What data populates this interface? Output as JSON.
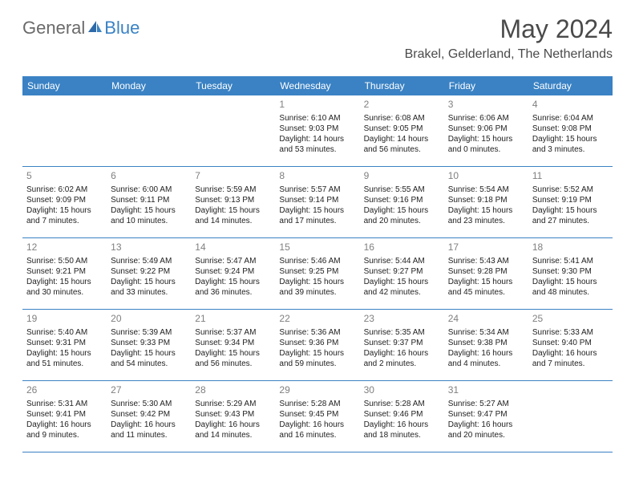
{
  "brand": {
    "part1": "General",
    "part2": "Blue"
  },
  "title": "May 2024",
  "location": "Brakel, Gelderland, The Netherlands",
  "colors": {
    "header_bg": "#3a82c4",
    "divider": "#3a82c4",
    "daynum": "#808080",
    "text": "#222222",
    "title_color": "#4a4a4a",
    "brand_gray": "#6a6a6a",
    "brand_blue": "#3a82c4"
  },
  "dayNames": [
    "Sunday",
    "Monday",
    "Tuesday",
    "Wednesday",
    "Thursday",
    "Friday",
    "Saturday"
  ],
  "weeks": [
    [
      {
        "n": "",
        "sr": "",
        "ss": "",
        "dl": ""
      },
      {
        "n": "",
        "sr": "",
        "ss": "",
        "dl": ""
      },
      {
        "n": "",
        "sr": "",
        "ss": "",
        "dl": ""
      },
      {
        "n": "1",
        "sr": "Sunrise: 6:10 AM",
        "ss": "Sunset: 9:03 PM",
        "dl": "Daylight: 14 hours and 53 minutes."
      },
      {
        "n": "2",
        "sr": "Sunrise: 6:08 AM",
        "ss": "Sunset: 9:05 PM",
        "dl": "Daylight: 14 hours and 56 minutes."
      },
      {
        "n": "3",
        "sr": "Sunrise: 6:06 AM",
        "ss": "Sunset: 9:06 PM",
        "dl": "Daylight: 15 hours and 0 minutes."
      },
      {
        "n": "4",
        "sr": "Sunrise: 6:04 AM",
        "ss": "Sunset: 9:08 PM",
        "dl": "Daylight: 15 hours and 3 minutes."
      }
    ],
    [
      {
        "n": "5",
        "sr": "Sunrise: 6:02 AM",
        "ss": "Sunset: 9:09 PM",
        "dl": "Daylight: 15 hours and 7 minutes."
      },
      {
        "n": "6",
        "sr": "Sunrise: 6:00 AM",
        "ss": "Sunset: 9:11 PM",
        "dl": "Daylight: 15 hours and 10 minutes."
      },
      {
        "n": "7",
        "sr": "Sunrise: 5:59 AM",
        "ss": "Sunset: 9:13 PM",
        "dl": "Daylight: 15 hours and 14 minutes."
      },
      {
        "n": "8",
        "sr": "Sunrise: 5:57 AM",
        "ss": "Sunset: 9:14 PM",
        "dl": "Daylight: 15 hours and 17 minutes."
      },
      {
        "n": "9",
        "sr": "Sunrise: 5:55 AM",
        "ss": "Sunset: 9:16 PM",
        "dl": "Daylight: 15 hours and 20 minutes."
      },
      {
        "n": "10",
        "sr": "Sunrise: 5:54 AM",
        "ss": "Sunset: 9:18 PM",
        "dl": "Daylight: 15 hours and 23 minutes."
      },
      {
        "n": "11",
        "sr": "Sunrise: 5:52 AM",
        "ss": "Sunset: 9:19 PM",
        "dl": "Daylight: 15 hours and 27 minutes."
      }
    ],
    [
      {
        "n": "12",
        "sr": "Sunrise: 5:50 AM",
        "ss": "Sunset: 9:21 PM",
        "dl": "Daylight: 15 hours and 30 minutes."
      },
      {
        "n": "13",
        "sr": "Sunrise: 5:49 AM",
        "ss": "Sunset: 9:22 PM",
        "dl": "Daylight: 15 hours and 33 minutes."
      },
      {
        "n": "14",
        "sr": "Sunrise: 5:47 AM",
        "ss": "Sunset: 9:24 PM",
        "dl": "Daylight: 15 hours and 36 minutes."
      },
      {
        "n": "15",
        "sr": "Sunrise: 5:46 AM",
        "ss": "Sunset: 9:25 PM",
        "dl": "Daylight: 15 hours and 39 minutes."
      },
      {
        "n": "16",
        "sr": "Sunrise: 5:44 AM",
        "ss": "Sunset: 9:27 PM",
        "dl": "Daylight: 15 hours and 42 minutes."
      },
      {
        "n": "17",
        "sr": "Sunrise: 5:43 AM",
        "ss": "Sunset: 9:28 PM",
        "dl": "Daylight: 15 hours and 45 minutes."
      },
      {
        "n": "18",
        "sr": "Sunrise: 5:41 AM",
        "ss": "Sunset: 9:30 PM",
        "dl": "Daylight: 15 hours and 48 minutes."
      }
    ],
    [
      {
        "n": "19",
        "sr": "Sunrise: 5:40 AM",
        "ss": "Sunset: 9:31 PM",
        "dl": "Daylight: 15 hours and 51 minutes."
      },
      {
        "n": "20",
        "sr": "Sunrise: 5:39 AM",
        "ss": "Sunset: 9:33 PM",
        "dl": "Daylight: 15 hours and 54 minutes."
      },
      {
        "n": "21",
        "sr": "Sunrise: 5:37 AM",
        "ss": "Sunset: 9:34 PM",
        "dl": "Daylight: 15 hours and 56 minutes."
      },
      {
        "n": "22",
        "sr": "Sunrise: 5:36 AM",
        "ss": "Sunset: 9:36 PM",
        "dl": "Daylight: 15 hours and 59 minutes."
      },
      {
        "n": "23",
        "sr": "Sunrise: 5:35 AM",
        "ss": "Sunset: 9:37 PM",
        "dl": "Daylight: 16 hours and 2 minutes."
      },
      {
        "n": "24",
        "sr": "Sunrise: 5:34 AM",
        "ss": "Sunset: 9:38 PM",
        "dl": "Daylight: 16 hours and 4 minutes."
      },
      {
        "n": "25",
        "sr": "Sunrise: 5:33 AM",
        "ss": "Sunset: 9:40 PM",
        "dl": "Daylight: 16 hours and 7 minutes."
      }
    ],
    [
      {
        "n": "26",
        "sr": "Sunrise: 5:31 AM",
        "ss": "Sunset: 9:41 PM",
        "dl": "Daylight: 16 hours and 9 minutes."
      },
      {
        "n": "27",
        "sr": "Sunrise: 5:30 AM",
        "ss": "Sunset: 9:42 PM",
        "dl": "Daylight: 16 hours and 11 minutes."
      },
      {
        "n": "28",
        "sr": "Sunrise: 5:29 AM",
        "ss": "Sunset: 9:43 PM",
        "dl": "Daylight: 16 hours and 14 minutes."
      },
      {
        "n": "29",
        "sr": "Sunrise: 5:28 AM",
        "ss": "Sunset: 9:45 PM",
        "dl": "Daylight: 16 hours and 16 minutes."
      },
      {
        "n": "30",
        "sr": "Sunrise: 5:28 AM",
        "ss": "Sunset: 9:46 PM",
        "dl": "Daylight: 16 hours and 18 minutes."
      },
      {
        "n": "31",
        "sr": "Sunrise: 5:27 AM",
        "ss": "Sunset: 9:47 PM",
        "dl": "Daylight: 16 hours and 20 minutes."
      },
      {
        "n": "",
        "sr": "",
        "ss": "",
        "dl": ""
      }
    ]
  ]
}
